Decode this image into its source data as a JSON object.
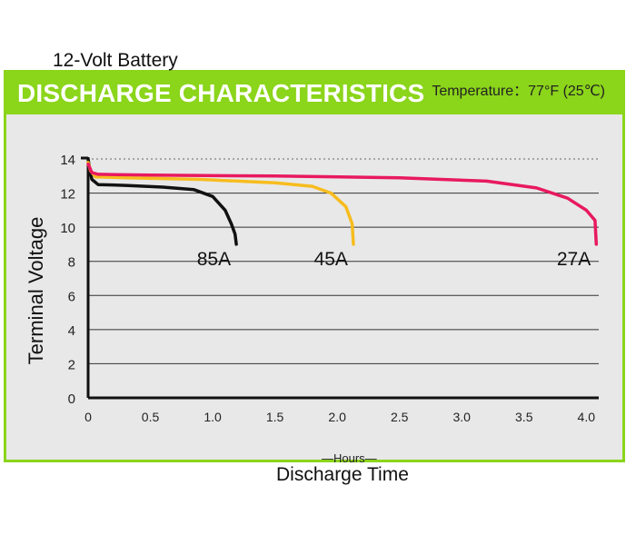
{
  "header": {
    "title": "DISCHARGE CHARACTERISTICS"
  },
  "chart_data": {
    "type": "line",
    "title": "12-Volt Battery",
    "annotation": "Temperature：77°F (25℃)",
    "ylabel": "Terminal Voltage",
    "xlabel": "Discharge Time",
    "xunit": "—Hours—",
    "xlim": [
      0,
      4.1
    ],
    "ylim": [
      0,
      14
    ],
    "xticks": [
      "0",
      "0.5",
      "1.0",
      "1.5",
      "2.0",
      "2.5",
      "3.0",
      "3.5",
      "4.0"
    ],
    "xtick_values": [
      0,
      0.5,
      1.0,
      1.5,
      2.0,
      2.5,
      3.0,
      3.5,
      4.0
    ],
    "yticks": [
      0,
      2,
      4,
      6,
      8,
      10,
      12,
      14
    ],
    "grid": "horizontal",
    "series": [
      {
        "name": "85A",
        "color": "#111111",
        "points": [
          [
            0,
            14
          ],
          [
            0.01,
            13.5
          ],
          [
            0.03,
            12.8
          ],
          [
            0.08,
            12.5
          ],
          [
            0.3,
            12.45
          ],
          [
            0.6,
            12.35
          ],
          [
            0.85,
            12.2
          ],
          [
            1.0,
            11.8
          ],
          [
            1.1,
            11.0
          ],
          [
            1.15,
            10.2
          ],
          [
            1.18,
            9.6
          ],
          [
            1.19,
            9.0
          ]
        ]
      },
      {
        "name": "45A",
        "color": "#f7bc1e",
        "points": [
          [
            0,
            13.8
          ],
          [
            0.02,
            13.3
          ],
          [
            0.06,
            12.95
          ],
          [
            0.3,
            12.9
          ],
          [
            0.9,
            12.8
          ],
          [
            1.5,
            12.6
          ],
          [
            1.8,
            12.4
          ],
          [
            1.95,
            12.0
          ],
          [
            2.07,
            11.2
          ],
          [
            2.12,
            10.2
          ],
          [
            2.13,
            9.0
          ]
        ]
      },
      {
        "name": "27A",
        "color": "#e8195f",
        "points": [
          [
            0,
            13.7
          ],
          [
            0.03,
            13.2
          ],
          [
            0.08,
            13.1
          ],
          [
            0.5,
            13.05
          ],
          [
            1.5,
            13.0
          ],
          [
            2.5,
            12.9
          ],
          [
            3.2,
            12.7
          ],
          [
            3.6,
            12.3
          ],
          [
            3.85,
            11.7
          ],
          [
            4.0,
            11.0
          ],
          [
            4.07,
            10.4
          ],
          [
            4.08,
            9.0
          ]
        ]
      }
    ]
  }
}
